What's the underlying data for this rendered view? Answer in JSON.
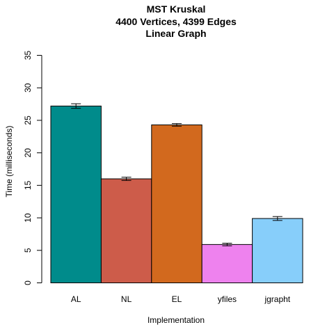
{
  "chart_data": {
    "type": "bar",
    "title_lines": [
      "MST Kruskal",
      "4400 Vertices, 4399 Edges",
      "Linear Graph"
    ],
    "xlabel": "Implementation",
    "ylabel": "Time (milliseconds)",
    "ylim": [
      0,
      35
    ],
    "yticks": [
      0,
      5,
      10,
      15,
      20,
      25,
      30,
      35
    ],
    "categories": [
      "AL",
      "NL",
      "EL",
      "yfiles",
      "jgrapht"
    ],
    "values": [
      27.2,
      16.0,
      24.3,
      5.9,
      9.9
    ],
    "errors": [
      0.35,
      0.25,
      0.2,
      0.2,
      0.3
    ],
    "colors": [
      "#008B8B",
      "#CD5C4A",
      "#D2691E",
      "#EE82EE",
      "#87CEFA"
    ],
    "grid": false,
    "legend": "none"
  }
}
